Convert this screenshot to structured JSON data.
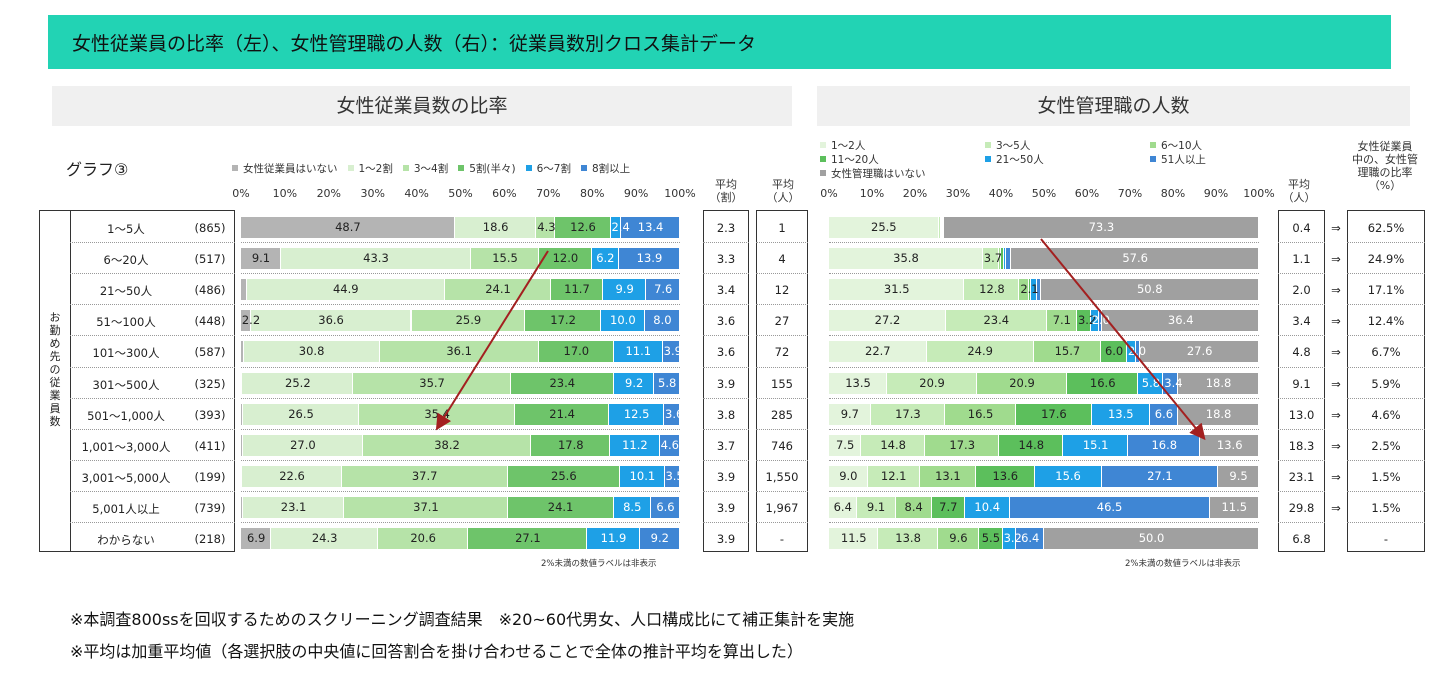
{
  "title": "女性従業員の比率（左）、女性管理職の人数（右）：従業員数別クロス集計データ",
  "left_panel_title": "女性従業員数の比率",
  "right_panel_title": "女性管理職の人数",
  "graph_label": "グラフ③",
  "side_label": "お勤め先の従業員数",
  "rows": [
    {
      "label": "1～5人",
      "n": "(865)"
    },
    {
      "label": "6～20人",
      "n": "(517)"
    },
    {
      "label": "21～50人",
      "n": "(486)"
    },
    {
      "label": "51～100人",
      "n": "(448)"
    },
    {
      "label": "101～300人",
      "n": "(587)"
    },
    {
      "label": "301～500人",
      "n": "(325)"
    },
    {
      "label": "501～1,000人",
      "n": "(393)"
    },
    {
      "label": "1,001～3,000人",
      "n": "(411)"
    },
    {
      "label": "3,001～5,000人",
      "n": "(199)"
    },
    {
      "label": "5,001人以上",
      "n": "(739)"
    },
    {
      "label": "わからない",
      "n": "(218)"
    }
  ],
  "axis_ticks": [
    "0%",
    "10%",
    "20%",
    "30%",
    "40%",
    "50%",
    "60%",
    "70%",
    "80%",
    "90%",
    "100%"
  ],
  "left_avg_headers": {
    "wari": "平均\n（割）",
    "nin": "平均\n（人）"
  },
  "right_headers": {
    "avg": "平均\n（人）",
    "ratio": "女性従業員\n中の、女性管\n理職の比率\n（%）"
  },
  "left_avg_wari": [
    "2.3",
    "3.3",
    "3.4",
    "3.6",
    "3.6",
    "3.9",
    "3.8",
    "3.7",
    "3.9",
    "3.9",
    "3.9"
  ],
  "left_avg_nin": [
    "1",
    "4",
    "12",
    "27",
    "72",
    "155",
    "285",
    "746",
    "1,550",
    "1,967",
    "-"
  ],
  "right_avg": [
    "0.4",
    "1.1",
    "2.0",
    "3.4",
    "4.8",
    "9.1",
    "13.0",
    "18.3",
    "23.1",
    "29.8",
    "6.8"
  ],
  "arrows": [
    "⇒",
    "⇒",
    "⇒",
    "⇒",
    "⇒",
    "⇒",
    "⇒",
    "⇒",
    "⇒",
    "⇒",
    ""
  ],
  "right_ratio": [
    "62.5%",
    "24.9%",
    "17.1%",
    "12.4%",
    "6.7%",
    "5.9%",
    "4.6%",
    "2.5%",
    "1.5%",
    "1.5%",
    "-"
  ],
  "note": "2%未満の数値ラベルは非表示",
  "footnote1": "※本調査800ssを回収するためのスクリーニング調査結果　※20~60代男女、人口構成比にて補正集計を実施",
  "footnote2": "※平均は加重平均値（各選択肢の中央値に回答割合を掛け合わせることで全体の推計平均を算出した）",
  "chart_data": [
    {
      "type": "bar",
      "stacked": true,
      "orientation": "horizontal",
      "title": "女性従業員数の比率",
      "categories": [
        "1～5人",
        "6～20人",
        "21～50人",
        "51～100人",
        "101～300人",
        "301～500人",
        "501～1,000人",
        "1,001～3,000人",
        "3,001～5,000人",
        "5,001人以上",
        "わからない"
      ],
      "xlim": [
        0,
        100
      ],
      "series": [
        {
          "name": "女性従業員はいない",
          "color": "#b4b4b4",
          "values": [
            48.7,
            9.1,
            1.3,
            2.2,
            0.6,
            0.3,
            0.4,
            0.5,
            0.3,
            0.4,
            6.9
          ]
        },
        {
          "name": "1～2割",
          "color": "#d8efd0",
          "values": [
            18.6,
            43.3,
            44.9,
            36.6,
            30.8,
            25.2,
            26.5,
            27.0,
            22.6,
            23.1,
            24.3
          ]
        },
        {
          "name": "3～4割",
          "color": "#b6e3a8",
          "values": [
            4.3,
            15.5,
            24.1,
            25.9,
            36.1,
            35.7,
            35.4,
            38.2,
            37.7,
            37.1,
            20.6
          ]
        },
        {
          "name": "5割(半々)",
          "color": "#6ec46a",
          "values": [
            12.6,
            12.0,
            11.7,
            17.2,
            17.0,
            23.4,
            21.4,
            17.8,
            25.6,
            24.1,
            27.1
          ]
        },
        {
          "name": "6～7割",
          "color": "#1ea0e6",
          "values": [
            2.4,
            6.2,
            9.9,
            10.0,
            11.1,
            9.2,
            12.5,
            11.2,
            10.1,
            8.5,
            11.9
          ]
        },
        {
          "name": "8割以上",
          "color": "#3f86d4",
          "values": [
            13.4,
            13.9,
            7.6,
            8.0,
            3.9,
            5.8,
            3.6,
            4.6,
            3.5,
            6.6,
            9.2
          ]
        }
      ],
      "labels": [
        [
          "",
          "48.7",
          "18.6",
          "4.3",
          "12.6",
          "2.4",
          "13.4"
        ],
        [
          "",
          "9.1",
          "43.3",
          "15.5",
          "12.0",
          "6.2",
          "13.9"
        ]
      ],
      "legend": "top"
    },
    {
      "type": "bar",
      "stacked": true,
      "orientation": "horizontal",
      "title": "女性管理職の人数",
      "categories": [
        "1～5人",
        "6～20人",
        "21～50人",
        "51～100人",
        "101～300人",
        "301～500人",
        "501～1,000人",
        "1,001～3,000人",
        "3,001～5,000人",
        "5,001人以上",
        "わからない"
      ],
      "xlim": [
        0,
        100
      ],
      "series": [
        {
          "name": "1～2人",
          "color": "#e3f4dc",
          "values": [
            25.5,
            35.8,
            31.5,
            27.2,
            22.7,
            13.5,
            9.7,
            7.5,
            9.0,
            6.4,
            11.5
          ]
        },
        {
          "name": "3～5人",
          "color": "#c6ebb8",
          "values": [
            0.5,
            3.7,
            12.8,
            23.4,
            24.9,
            20.9,
            17.3,
            14.8,
            12.1,
            9.1,
            13.8
          ]
        },
        {
          "name": "6～10人",
          "color": "#a0db8e",
          "values": [
            0.3,
            0.6,
            2.1,
            7.1,
            15.7,
            20.9,
            16.5,
            17.3,
            13.1,
            8.4,
            9.6
          ]
        },
        {
          "name": "11～20人",
          "color": "#5cbf5c",
          "values": [
            0.2,
            0.6,
            0.5,
            3.2,
            6.0,
            16.6,
            17.6,
            14.8,
            13.6,
            7.7,
            5.5
          ]
        },
        {
          "name": "21～50人",
          "color": "#1ea0e6",
          "values": [
            0.1,
            0.5,
            1.5,
            2.0,
            2.0,
            5.8,
            13.5,
            15.1,
            15.6,
            10.4,
            3.2
          ]
        },
        {
          "name": "51人以上",
          "color": "#3f86d4",
          "values": [
            0.1,
            1.2,
            0.8,
            0.7,
            1.1,
            3.4,
            6.6,
            16.8,
            27.1,
            46.5,
            6.4
          ]
        },
        {
          "name": "女性管理職はいない",
          "color": "#a0a0a0",
          "values": [
            73.3,
            57.6,
            50.8,
            36.4,
            27.6,
            18.8,
            18.8,
            13.6,
            9.5,
            11.5,
            50.0
          ]
        }
      ],
      "legend": "top"
    }
  ],
  "left_display_labels": [
    [
      "",
      "48.7",
      "18.6",
      "4.3",
      "12.6",
      "2.4",
      "13.4"
    ],
    [
      "9.1",
      "43.3",
      "15.5",
      "12.0",
      "6.2",
      "13.9"
    ],
    [
      "",
      "44.9",
      "24.1",
      "11.7",
      "9.9",
      "7.6"
    ],
    [
      "2.2",
      "36.6",
      "25.9",
      "17.2",
      "10.0",
      "8.0"
    ],
    [
      "",
      "30.8",
      "36.1",
      "17.0",
      "11.1",
      "3.9"
    ],
    [
      "",
      "25.2",
      "35.7",
      "23.4",
      "9.2",
      "5.8"
    ],
    [
      "",
      "26.5",
      "35.4",
      "21.4",
      "12.5",
      "3.6"
    ],
    [
      "",
      "27.0",
      "38.2",
      "17.8",
      "11.2",
      "4.6"
    ],
    [
      "",
      "22.6",
      "37.7",
      "25.6",
      "10.1",
      "3.5"
    ],
    [
      "",
      "23.1",
      "37.1",
      "24.1",
      "8.5",
      "6.6"
    ],
    [
      "6.9",
      "24.3",
      "20.6",
      "27.1",
      "11.9",
      "9.2"
    ]
  ],
  "right_display_labels": [
    [
      "25.5",
      "",
      "",
      "",
      "",
      "",
      "73.3"
    ],
    [
      "35.8",
      "3.7",
      "",
      "",
      "",
      "",
      "57.6"
    ],
    [
      "31.5",
      "12.8",
      "2.1",
      "",
      "",
      "",
      "50.8"
    ],
    [
      "27.2",
      "23.4",
      "7.1",
      "3.2",
      "2.0",
      "",
      "36.4"
    ],
    [
      "22.7",
      "24.9",
      "15.7",
      "6.0",
      "2.0",
      "",
      "27.6"
    ],
    [
      "13.5",
      "20.9",
      "20.9",
      "16.6",
      "5.8",
      "3.4",
      "18.8"
    ],
    [
      "9.7",
      "17.3",
      "16.5",
      "17.6",
      "13.5",
      "6.6",
      "18.8"
    ],
    [
      "7.5",
      "14.8",
      "17.3",
      "14.8",
      "15.1",
      "16.8",
      "13.6"
    ],
    [
      "9.0",
      "12.1",
      "13.1",
      "13.6",
      "15.6",
      "27.1",
      "9.5"
    ],
    [
      "6.4",
      "9.1",
      "8.4",
      "7.7",
      "10.4",
      "46.5",
      "11.5"
    ],
    [
      "11.5",
      "13.8",
      "9.6",
      "5.5",
      "3.2",
      "6.4",
      "50.0"
    ]
  ]
}
